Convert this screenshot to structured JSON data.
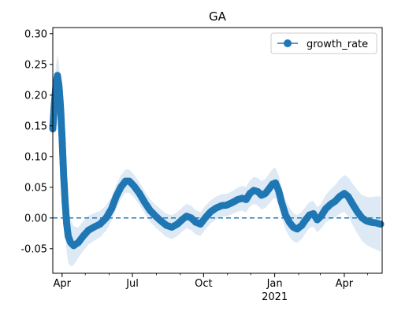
{
  "chart_data": {
    "type": "line",
    "title": "GA",
    "xlabel": "",
    "ylabel": "",
    "x_tick_labels": [
      {
        "date": "2020-04-01",
        "label": "Apr",
        "sub": ""
      },
      {
        "date": "2020-07-01",
        "label": "Jul",
        "sub": ""
      },
      {
        "date": "2020-10-01",
        "label": "Oct",
        "sub": ""
      },
      {
        "date": "2021-01-01",
        "label": "Jan",
        "sub": "2021"
      },
      {
        "date": "2021-04-01",
        "label": "Apr",
        "sub": ""
      }
    ],
    "xlim": [
      "2020-03-20",
      "2021-05-20"
    ],
    "ylim": [
      -0.09,
      0.31
    ],
    "y_ticks": [
      "-0.05",
      "0.00",
      "0.05",
      "0.10",
      "0.15",
      "0.20",
      "0.25",
      "0.30"
    ],
    "y_tick_values": [
      -0.05,
      0,
      0.05,
      0.1,
      0.15,
      0.2,
      0.25,
      0.3
    ],
    "zero_line": {
      "y": 0,
      "style": "dashed"
    },
    "legend": {
      "position": "top-right",
      "entries": [
        "growth_rate"
      ]
    },
    "colors": {
      "series": "#1f77b4",
      "band": "#c6dbef"
    },
    "series": [
      {
        "name": "growth_rate",
        "marker": "circle",
        "points": [
          [
            "2020-03-20",
            0.145
          ],
          [
            "2020-03-22",
            0.185
          ],
          [
            "2020-03-24",
            0.215
          ],
          [
            "2020-03-26",
            0.232
          ],
          [
            "2020-03-28",
            0.215
          ],
          [
            "2020-03-30",
            0.18
          ],
          [
            "2020-04-01",
            0.13
          ],
          [
            "2020-04-03",
            0.07
          ],
          [
            "2020-04-05",
            0.025
          ],
          [
            "2020-04-07",
            -0.01
          ],
          [
            "2020-04-09",
            -0.03
          ],
          [
            "2020-04-12",
            -0.04
          ],
          [
            "2020-04-16",
            -0.045
          ],
          [
            "2020-04-22",
            -0.04
          ],
          [
            "2020-04-28",
            -0.03
          ],
          [
            "2020-05-05",
            -0.02
          ],
          [
            "2020-05-12",
            -0.015
          ],
          [
            "2020-05-20",
            -0.01
          ],
          [
            "2020-05-28",
            0.0
          ],
          [
            "2020-06-04",
            0.015
          ],
          [
            "2020-06-10",
            0.035
          ],
          [
            "2020-06-16",
            0.05
          ],
          [
            "2020-06-22",
            0.06
          ],
          [
            "2020-06-27",
            0.06
          ],
          [
            "2020-07-03",
            0.052
          ],
          [
            "2020-07-10",
            0.04
          ],
          [
            "2020-07-17",
            0.025
          ],
          [
            "2020-07-24",
            0.012
          ],
          [
            "2020-07-31",
            0.003
          ],
          [
            "2020-08-07",
            -0.005
          ],
          [
            "2020-08-14",
            -0.012
          ],
          [
            "2020-08-21",
            -0.015
          ],
          [
            "2020-08-28",
            -0.01
          ],
          [
            "2020-09-04",
            -0.002
          ],
          [
            "2020-09-09",
            0.003
          ],
          [
            "2020-09-15",
            0.0
          ],
          [
            "2020-09-21",
            -0.007
          ],
          [
            "2020-09-27",
            -0.01
          ],
          [
            "2020-10-03",
            0.0
          ],
          [
            "2020-10-10",
            0.01
          ],
          [
            "2020-10-17",
            0.016
          ],
          [
            "2020-10-24",
            0.02
          ],
          [
            "2020-10-31",
            0.021
          ],
          [
            "2020-11-07",
            0.025
          ],
          [
            "2020-11-14",
            0.03
          ],
          [
            "2020-11-20",
            0.032
          ],
          [
            "2020-11-25",
            0.03
          ],
          [
            "2020-11-30",
            0.04
          ],
          [
            "2020-12-05",
            0.045
          ],
          [
            "2020-12-10",
            0.043
          ],
          [
            "2020-12-15",
            0.037
          ],
          [
            "2020-12-20",
            0.04
          ],
          [
            "2020-12-25",
            0.048
          ],
          [
            "2020-12-29",
            0.055
          ],
          [
            "2021-01-02",
            0.057
          ],
          [
            "2021-01-06",
            0.045
          ],
          [
            "2021-01-10",
            0.025
          ],
          [
            "2021-01-15",
            0.005
          ],
          [
            "2021-01-20",
            -0.007
          ],
          [
            "2021-01-25",
            -0.015
          ],
          [
            "2021-01-30",
            -0.018
          ],
          [
            "2021-02-05",
            -0.012
          ],
          [
            "2021-02-10",
            -0.003
          ],
          [
            "2021-02-15",
            0.005
          ],
          [
            "2021-02-20",
            0.007
          ],
          [
            "2021-02-25",
            -0.003
          ],
          [
            "2021-03-02",
            0.003
          ],
          [
            "2021-03-08",
            0.015
          ],
          [
            "2021-03-14",
            0.022
          ],
          [
            "2021-03-20",
            0.027
          ],
          [
            "2021-03-26",
            0.035
          ],
          [
            "2021-04-01",
            0.04
          ],
          [
            "2021-04-06",
            0.035
          ],
          [
            "2021-04-12",
            0.022
          ],
          [
            "2021-04-18",
            0.01
          ],
          [
            "2021-04-24",
            0.0
          ],
          [
            "2021-04-30",
            -0.005
          ],
          [
            "2021-05-06",
            -0.007
          ],
          [
            "2021-05-12",
            -0.008
          ],
          [
            "2021-05-18",
            -0.01
          ]
        ],
        "band_halfwidth": [
          [
            "2020-03-20",
            0.025
          ],
          [
            "2020-04-05",
            0.05
          ],
          [
            "2020-04-20",
            0.025
          ],
          [
            "2020-06-01",
            0.02
          ],
          [
            "2020-07-15",
            0.018
          ],
          [
            "2020-09-15",
            0.02
          ],
          [
            "2020-11-01",
            0.018
          ],
          [
            "2021-01-01",
            0.025
          ],
          [
            "2021-03-01",
            0.02
          ],
          [
            "2021-05-18",
            0.045
          ]
        ]
      }
    ]
  }
}
